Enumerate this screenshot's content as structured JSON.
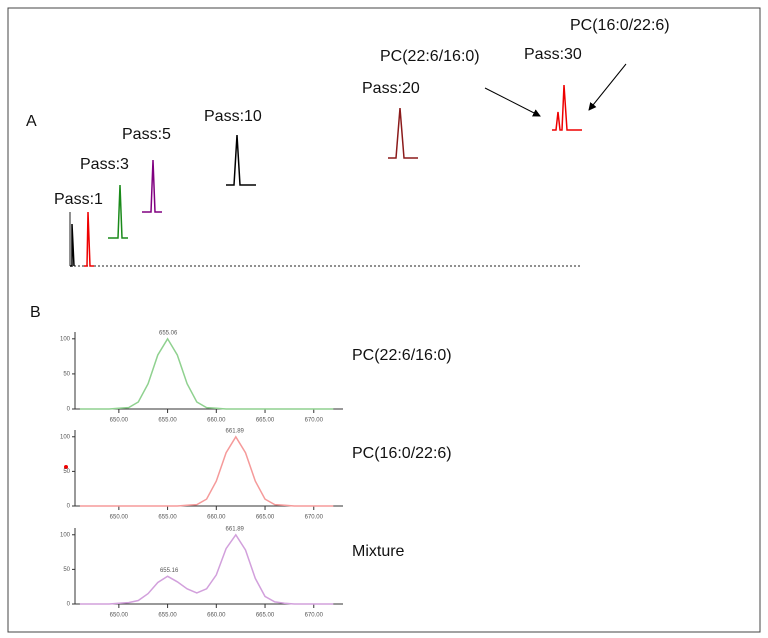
{
  "panel_a": {
    "label": "A",
    "pass_labels": [
      "Pass:1",
      "Pass:3",
      "Pass:5",
      "Pass:10",
      "Pass:20",
      "Pass:30"
    ],
    "annotations": [
      "PC(22:6/16:0)",
      "PC(16:0/22:6)"
    ]
  },
  "panel_b": {
    "label": "B"
  },
  "chart_data": [
    {
      "type": "line",
      "title": "PC(22:6/16:0)",
      "color": "#8fd18f",
      "x": [
        646,
        647,
        648,
        649,
        650,
        651,
        652,
        653,
        654,
        655,
        656,
        657,
        658,
        659,
        660,
        661,
        662,
        663,
        664,
        665,
        666,
        667,
        668,
        669,
        670,
        671,
        672
      ],
      "values": [
        0,
        0,
        0,
        0,
        1,
        2,
        10,
        36,
        77,
        100,
        77,
        36,
        10,
        2,
        1,
        0,
        0,
        0,
        0,
        0,
        0,
        0,
        0,
        0,
        0,
        0,
        0
      ],
      "peak_labels": [
        {
          "value": 655.06,
          "label": "655.06"
        }
      ],
      "xlim": [
        645.5,
        673
      ],
      "ylim": [
        0,
        104
      ],
      "xticks": [
        {
          "value": 650,
          "label": "650.00"
        },
        {
          "value": 655,
          "label": "655.00"
        },
        {
          "value": 660,
          "label": "660.00"
        },
        {
          "value": 665,
          "label": "665.00"
        },
        {
          "value": 670,
          "label": "670.00"
        }
      ],
      "yticks": [
        0,
        50,
        100
      ]
    },
    {
      "type": "line",
      "title": "PC(16:0/22:6)",
      "color": "#f59a9a",
      "x": [
        646,
        647,
        648,
        649,
        650,
        651,
        652,
        653,
        654,
        655,
        656,
        657,
        658,
        659,
        660,
        661,
        662,
        663,
        664,
        665,
        666,
        667,
        668,
        669,
        670,
        671,
        672
      ],
      "values": [
        0,
        0,
        0,
        0,
        0,
        0,
        0,
        0,
        0,
        0,
        0,
        1,
        2,
        10,
        36,
        77,
        100,
        77,
        36,
        10,
        2,
        1,
        0,
        0,
        0,
        0,
        0
      ],
      "peak_labels": [
        {
          "value": 661.89,
          "label": "661.89"
        }
      ],
      "xlim": [
        645.5,
        673
      ],
      "ylim": [
        0,
        104
      ],
      "xticks": [
        {
          "value": 650,
          "label": "650.00"
        },
        {
          "value": 655,
          "label": "655.00"
        },
        {
          "value": 660,
          "label": "660.00"
        },
        {
          "value": 665,
          "label": "665.00"
        },
        {
          "value": 670,
          "label": "670.00"
        }
      ],
      "yticks": [
        0,
        50,
        100
      ]
    },
    {
      "type": "line",
      "title": "Mixture",
      "color": "#d2a0dc",
      "x": [
        646,
        647,
        648,
        649,
        650,
        651,
        652,
        653,
        654,
        655,
        656,
        657,
        658,
        659,
        660,
        661,
        662,
        663,
        664,
        665,
        666,
        667,
        668,
        669,
        670,
        671,
        672
      ],
      "values": [
        0,
        0,
        0,
        0,
        1,
        2,
        5,
        15,
        31,
        40,
        32,
        22,
        16,
        22,
        42,
        80,
        100,
        78,
        37,
        11,
        3,
        1,
        0,
        0,
        0,
        0,
        0
      ],
      "peak_labels": [
        {
          "value": 655.16,
          "label": "655.16"
        },
        {
          "value": 661.89,
          "label": "661.89"
        }
      ],
      "xlim": [
        645.5,
        673
      ],
      "ylim": [
        0,
        104
      ],
      "xticks": [
        {
          "value": 650,
          "label": "650.00"
        },
        {
          "value": 655,
          "label": "655.00"
        },
        {
          "value": 660,
          "label": "660.00"
        },
        {
          "value": 665,
          "label": "665.00"
        },
        {
          "value": 670,
          "label": "670.00"
        }
      ],
      "yticks": [
        0,
        50,
        100
      ]
    }
  ]
}
